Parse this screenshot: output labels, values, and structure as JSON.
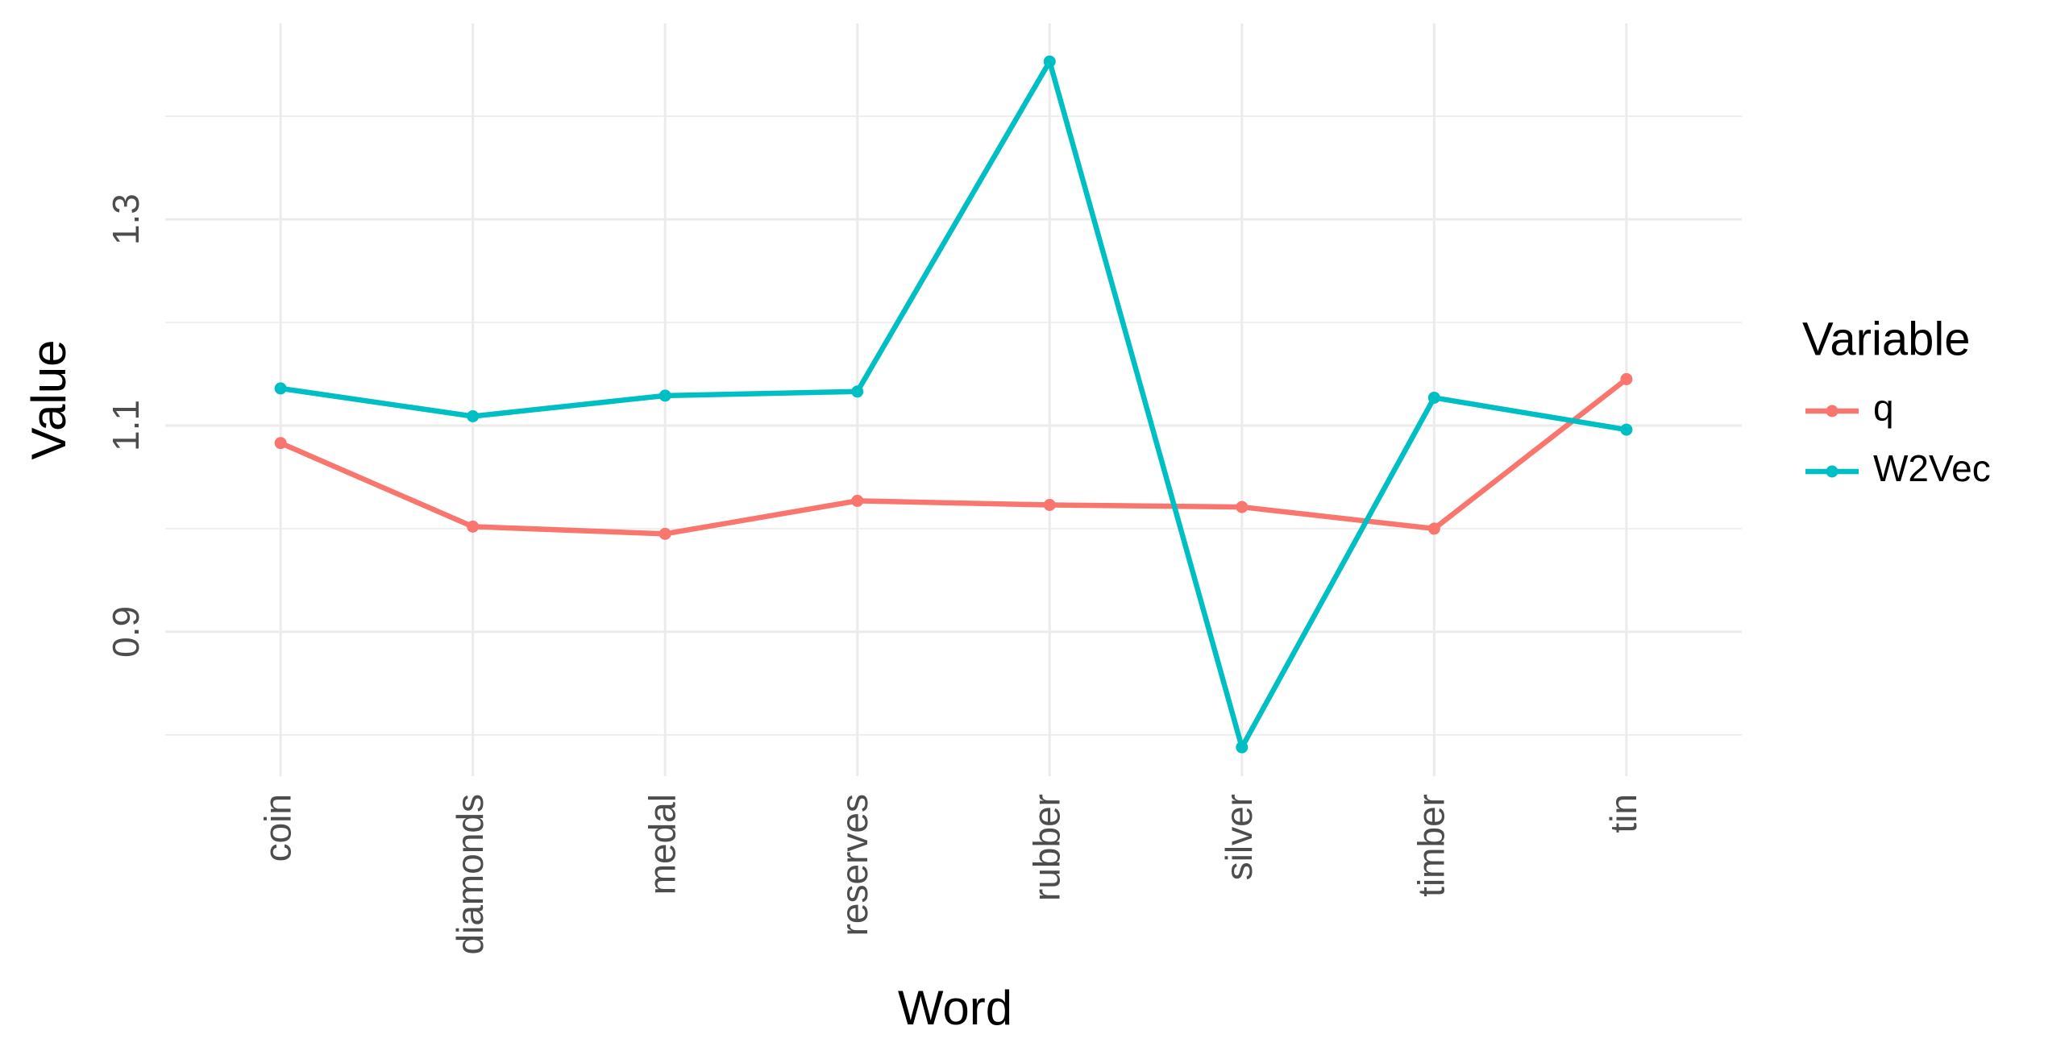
{
  "chart_data": {
    "type": "line",
    "x_label": "Word",
    "y_label": "Value",
    "legend_title": "Variable",
    "categories": [
      "coin",
      "diamonds",
      "medal",
      "reserves",
      "rubber",
      "silver",
      "timber",
      "tin"
    ],
    "series": [
      {
        "name": "q",
        "color": "#F8766D",
        "values": [
          1.083,
          1.002,
          0.995,
          1.027,
          1.023,
          1.021,
          1.0,
          1.145
        ]
      },
      {
        "name": "W2Vec",
        "color": "#00BFC4",
        "values": [
          1.136,
          1.109,
          1.129,
          1.133,
          1.453,
          0.788,
          1.127,
          1.096
        ]
      }
    ],
    "ylim": [
      0.76,
      1.49
    ],
    "yticks": [
      0.9,
      1.1,
      1.3
    ],
    "y_minor_grid": [
      0.8,
      1.0,
      1.2,
      1.4
    ],
    "grid": true,
    "legend_position": "right"
  }
}
